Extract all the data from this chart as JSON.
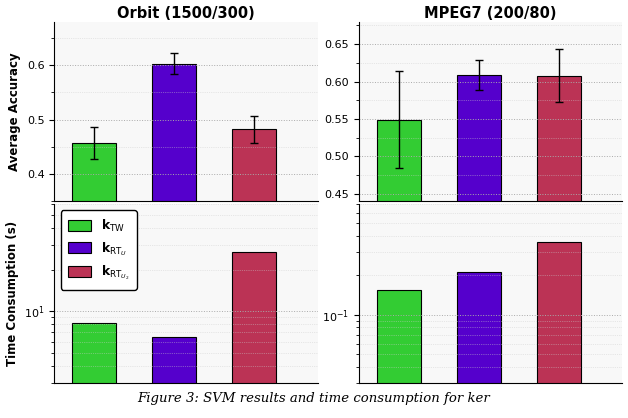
{
  "orbit_title": "Orbit (1500/300)",
  "mpeg_title": "MPEG7 (200/80)",
  "ylabel_acc": "Average Accuracy",
  "ylabel_time": "Time Consumption (s)",
  "colors": [
    "#33cc33",
    "#5500cc",
    "#bb3355"
  ],
  "legend_labels": [
    "$\\mathbf{k}_{\\mathrm{TW}}$",
    "$\\mathbf{k}_{\\mathrm{RT}_U}$",
    "$\\mathbf{k}_{\\mathrm{RT}_{U_2}}$"
  ],
  "orbit_acc": [
    0.457,
    0.603,
    0.482
  ],
  "orbit_acc_err": [
    0.03,
    0.02,
    0.025
  ],
  "mpeg_acc": [
    0.549,
    0.609,
    0.608
  ],
  "mpeg_acc_err": [
    0.065,
    0.02,
    0.035
  ],
  "orbit_acc_ylim": [
    0.35,
    0.68
  ],
  "mpeg_acc_ylim": [
    0.44,
    0.68
  ],
  "orbit_time": [
    8.2,
    6.5,
    27.0
  ],
  "mpeg_time": [
    0.155,
    0.21,
    0.36
  ],
  "orbit_time_ylim": [
    3,
    60
  ],
  "mpeg_time_ylim": [
    0.03,
    0.7
  ],
  "bar_width": 0.55,
  "bar_positions": [
    1,
    2,
    3
  ],
  "caption": "Figure 3: SVM results and time consumption for ker"
}
